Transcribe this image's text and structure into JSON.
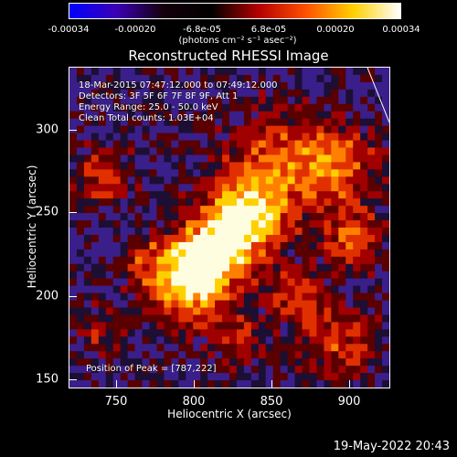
{
  "colorbar": {
    "ticks": [
      "-0.00034",
      "-0.00020",
      "-6.8e-05",
      "6.8e-05",
      "0.00020",
      "0.00034"
    ],
    "units": "(photons cm⁻² s⁻¹ asec⁻²)",
    "colors": [
      "#0000ff",
      "#3c00b4",
      "#14000a",
      "#000000",
      "#b40000",
      "#ff5000",
      "#ffd000",
      "#ffffff"
    ]
  },
  "plot": {
    "title": "Reconstructed RHESSI Image",
    "annotations": [
      "18-Mar-2015 07:47:12.000 to 07:49:12.000",
      "Detectors: 3F 5F 6F 7F 8F 9F, Att 1",
      "Energy Range: 25.0 - 50.0 keV",
      "Clean     Total counts: 1.03E+04"
    ],
    "peak_label": "Position of Peak = [787,222]",
    "x_axis": {
      "label": "Heliocentric X (arcsec)",
      "ticks": [
        "750",
        "800",
        "850",
        "900"
      ]
    },
    "y_axis": {
      "label": "Heliocentric Y (arcsec)",
      "ticks": [
        "300",
        "250",
        "200",
        "150"
      ]
    }
  },
  "timestamp": "19-May-2022 20:43"
}
